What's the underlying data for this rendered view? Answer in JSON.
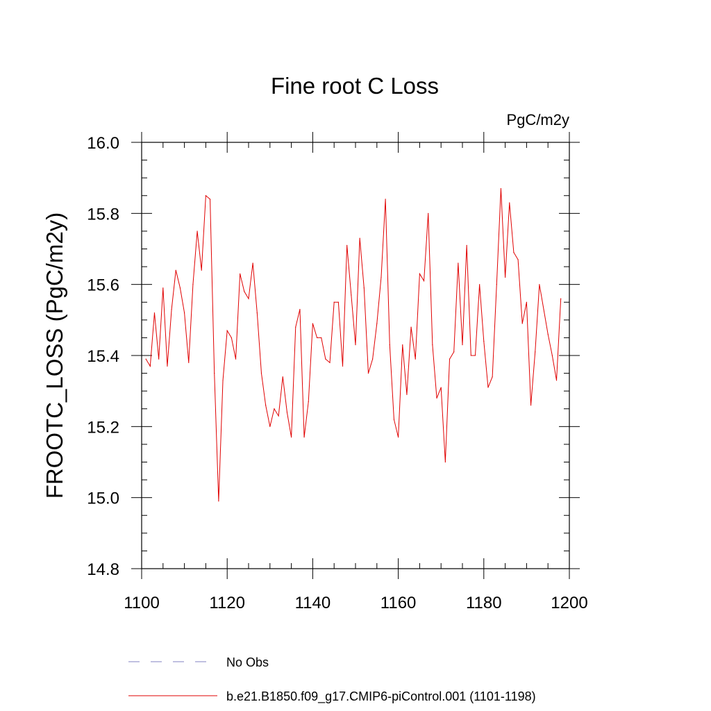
{
  "chart_data": {
    "type": "line",
    "title": "Fine root C Loss",
    "units": "PgC/m2y",
    "ylabel": "FROOTC_LOSS  (PgC/m2y)",
    "xlabel": "",
    "xlim": [
      1100,
      1200
    ],
    "ylim": [
      14.8,
      16.0
    ],
    "x_ticks": [
      1100,
      1120,
      1140,
      1160,
      1180,
      1200
    ],
    "x_tick_labels": [
      "1100",
      "1120",
      "1140",
      "1160",
      "1180",
      "1200"
    ],
    "y_ticks": [
      14.8,
      15.0,
      15.2,
      15.4,
      15.6,
      15.8,
      16.0
    ],
    "y_tick_labels": [
      "14.8",
      "15.0",
      "15.2",
      "15.4",
      "15.6",
      "15.8",
      "16.0"
    ],
    "grid": false,
    "legend_position": "bottom",
    "legend": [
      {
        "name": "No Obs",
        "color": "#8080c0",
        "dash": "dashed"
      },
      {
        "name": "b.e21.B1850.f09_g17.CMIP6-piControl.001 (1101-1198)",
        "color": "#e00000",
        "dash": "solid"
      }
    ],
    "series": [
      {
        "name": "b.e21.B1850.f09_g17.CMIP6-piControl.001 (1101-1198)",
        "color": "#e00000",
        "x_start": 1101,
        "x_end": 1198,
        "values": [
          15.39,
          15.37,
          15.52,
          15.39,
          15.59,
          15.37,
          15.53,
          15.64,
          15.59,
          15.52,
          15.38,
          15.6,
          15.75,
          15.64,
          15.85,
          15.84,
          15.35,
          14.99,
          15.33,
          15.47,
          15.45,
          15.39,
          15.63,
          15.58,
          15.56,
          15.66,
          15.52,
          15.35,
          15.26,
          15.2,
          15.25,
          15.23,
          15.34,
          15.24,
          15.17,
          15.48,
          15.53,
          15.17,
          15.27,
          15.49,
          15.45,
          15.45,
          15.39,
          15.38,
          15.55,
          15.55,
          15.37,
          15.71,
          15.57,
          15.43,
          15.73,
          15.59,
          15.35,
          15.39,
          15.49,
          15.62,
          15.84,
          15.43,
          15.22,
          15.17,
          15.43,
          15.29,
          15.48,
          15.39,
          15.63,
          15.61,
          15.8,
          15.43,
          15.28,
          15.31,
          15.1,
          15.39,
          15.41,
          15.66,
          15.43,
          15.71,
          15.4,
          15.4,
          15.6,
          15.44,
          15.31,
          15.34,
          15.6,
          15.87,
          15.62,
          15.83,
          15.69,
          15.67,
          15.49,
          15.55,
          15.26,
          15.41,
          15.6,
          15.53,
          15.46,
          15.4,
          15.33,
          15.56
        ]
      }
    ]
  }
}
